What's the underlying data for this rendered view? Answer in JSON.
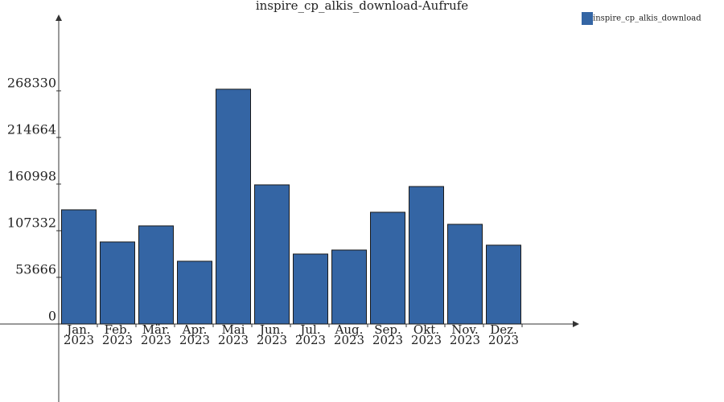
{
  "chart_data": {
    "type": "bar",
    "title": "inspire_cp_alkis_download-Aufrufe",
    "categories": [
      [
        "Jan.",
        "2023"
      ],
      [
        "Feb.",
        "2023"
      ],
      [
        "Mär.",
        "2023"
      ],
      [
        "Apr.",
        "2023"
      ],
      [
        "Mai",
        "2023"
      ],
      [
        "Jun.",
        "2023"
      ],
      [
        "Jul.",
        "2023"
      ],
      [
        "Aug.",
        "2023"
      ],
      [
        "Sep.",
        "2023"
      ],
      [
        "Okt.",
        "2023"
      ],
      [
        "Nov.",
        "2023"
      ],
      [
        "Dez.",
        "2023"
      ]
    ],
    "series": [
      {
        "name": "inspire_cp_alkis_download",
        "color": "#3465a4",
        "values": [
          131400,
          94400,
          112900,
          72200,
          270200,
          160100,
          80500,
          85100,
          128600,
          158200,
          114700,
          90700
        ]
      }
    ],
    "ylim": [
      -89800,
      356200
    ],
    "yticks": [
      0,
      53666,
      107332,
      160998,
      214664,
      268330
    ],
    "legend": "top-right"
  }
}
